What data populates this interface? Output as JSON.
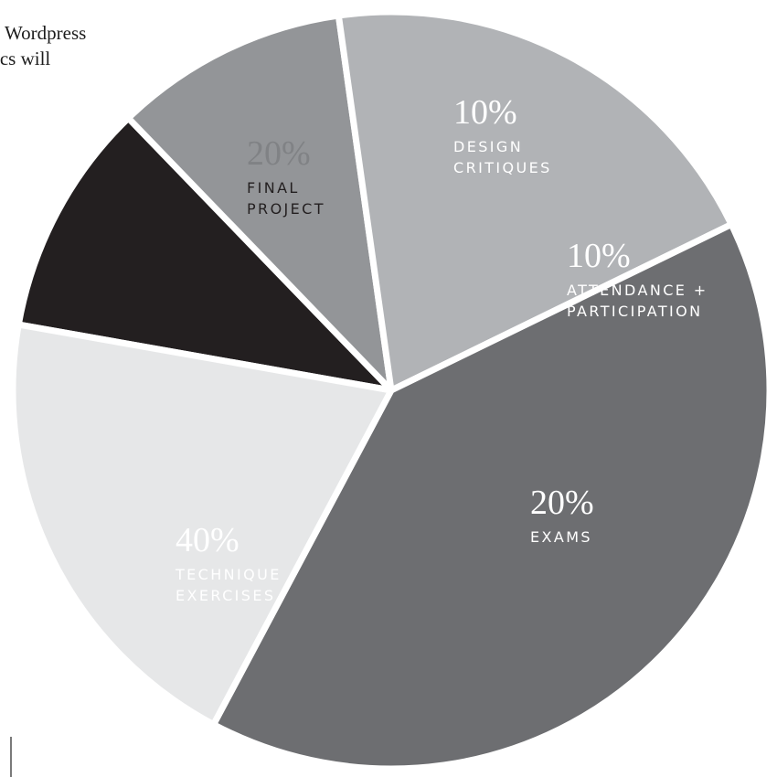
{
  "background_text": {
    "lines": [
      "Wordpress",
      "ics will"
    ]
  },
  "chart_data": {
    "type": "pie",
    "title": "",
    "unit": "%",
    "slices": [
      {
        "label_lines": [
          "DESIGN",
          "CRITIQUES"
        ],
        "value": 10,
        "display": "10%",
        "color": "#231f20",
        "text_color": "#ffffff"
      },
      {
        "label_lines": [
          "ATTENDANCE +",
          "PARTICIPATION"
        ],
        "value": 10,
        "display": "10%",
        "color": "#939598",
        "text_color": "#ffffff"
      },
      {
        "label_lines": [
          "EXAMS"
        ],
        "value": 20,
        "display": "20%",
        "color": "#b1b3b6",
        "text_color": "#ffffff"
      },
      {
        "label_lines": [
          "TECHNIQUE",
          "EXERCISES"
        ],
        "value": 40,
        "display": "40%",
        "color": "#6d6e71",
        "text_color": "#ffffff"
      },
      {
        "label_lines": [
          "FINAL",
          "PROJECT"
        ],
        "value": 20,
        "display": "20%",
        "color": "#e6e7e8",
        "text_color": "#231f20",
        "pct_color": "#808285"
      }
    ],
    "legend": "none",
    "labels_inside_slices": true
  }
}
